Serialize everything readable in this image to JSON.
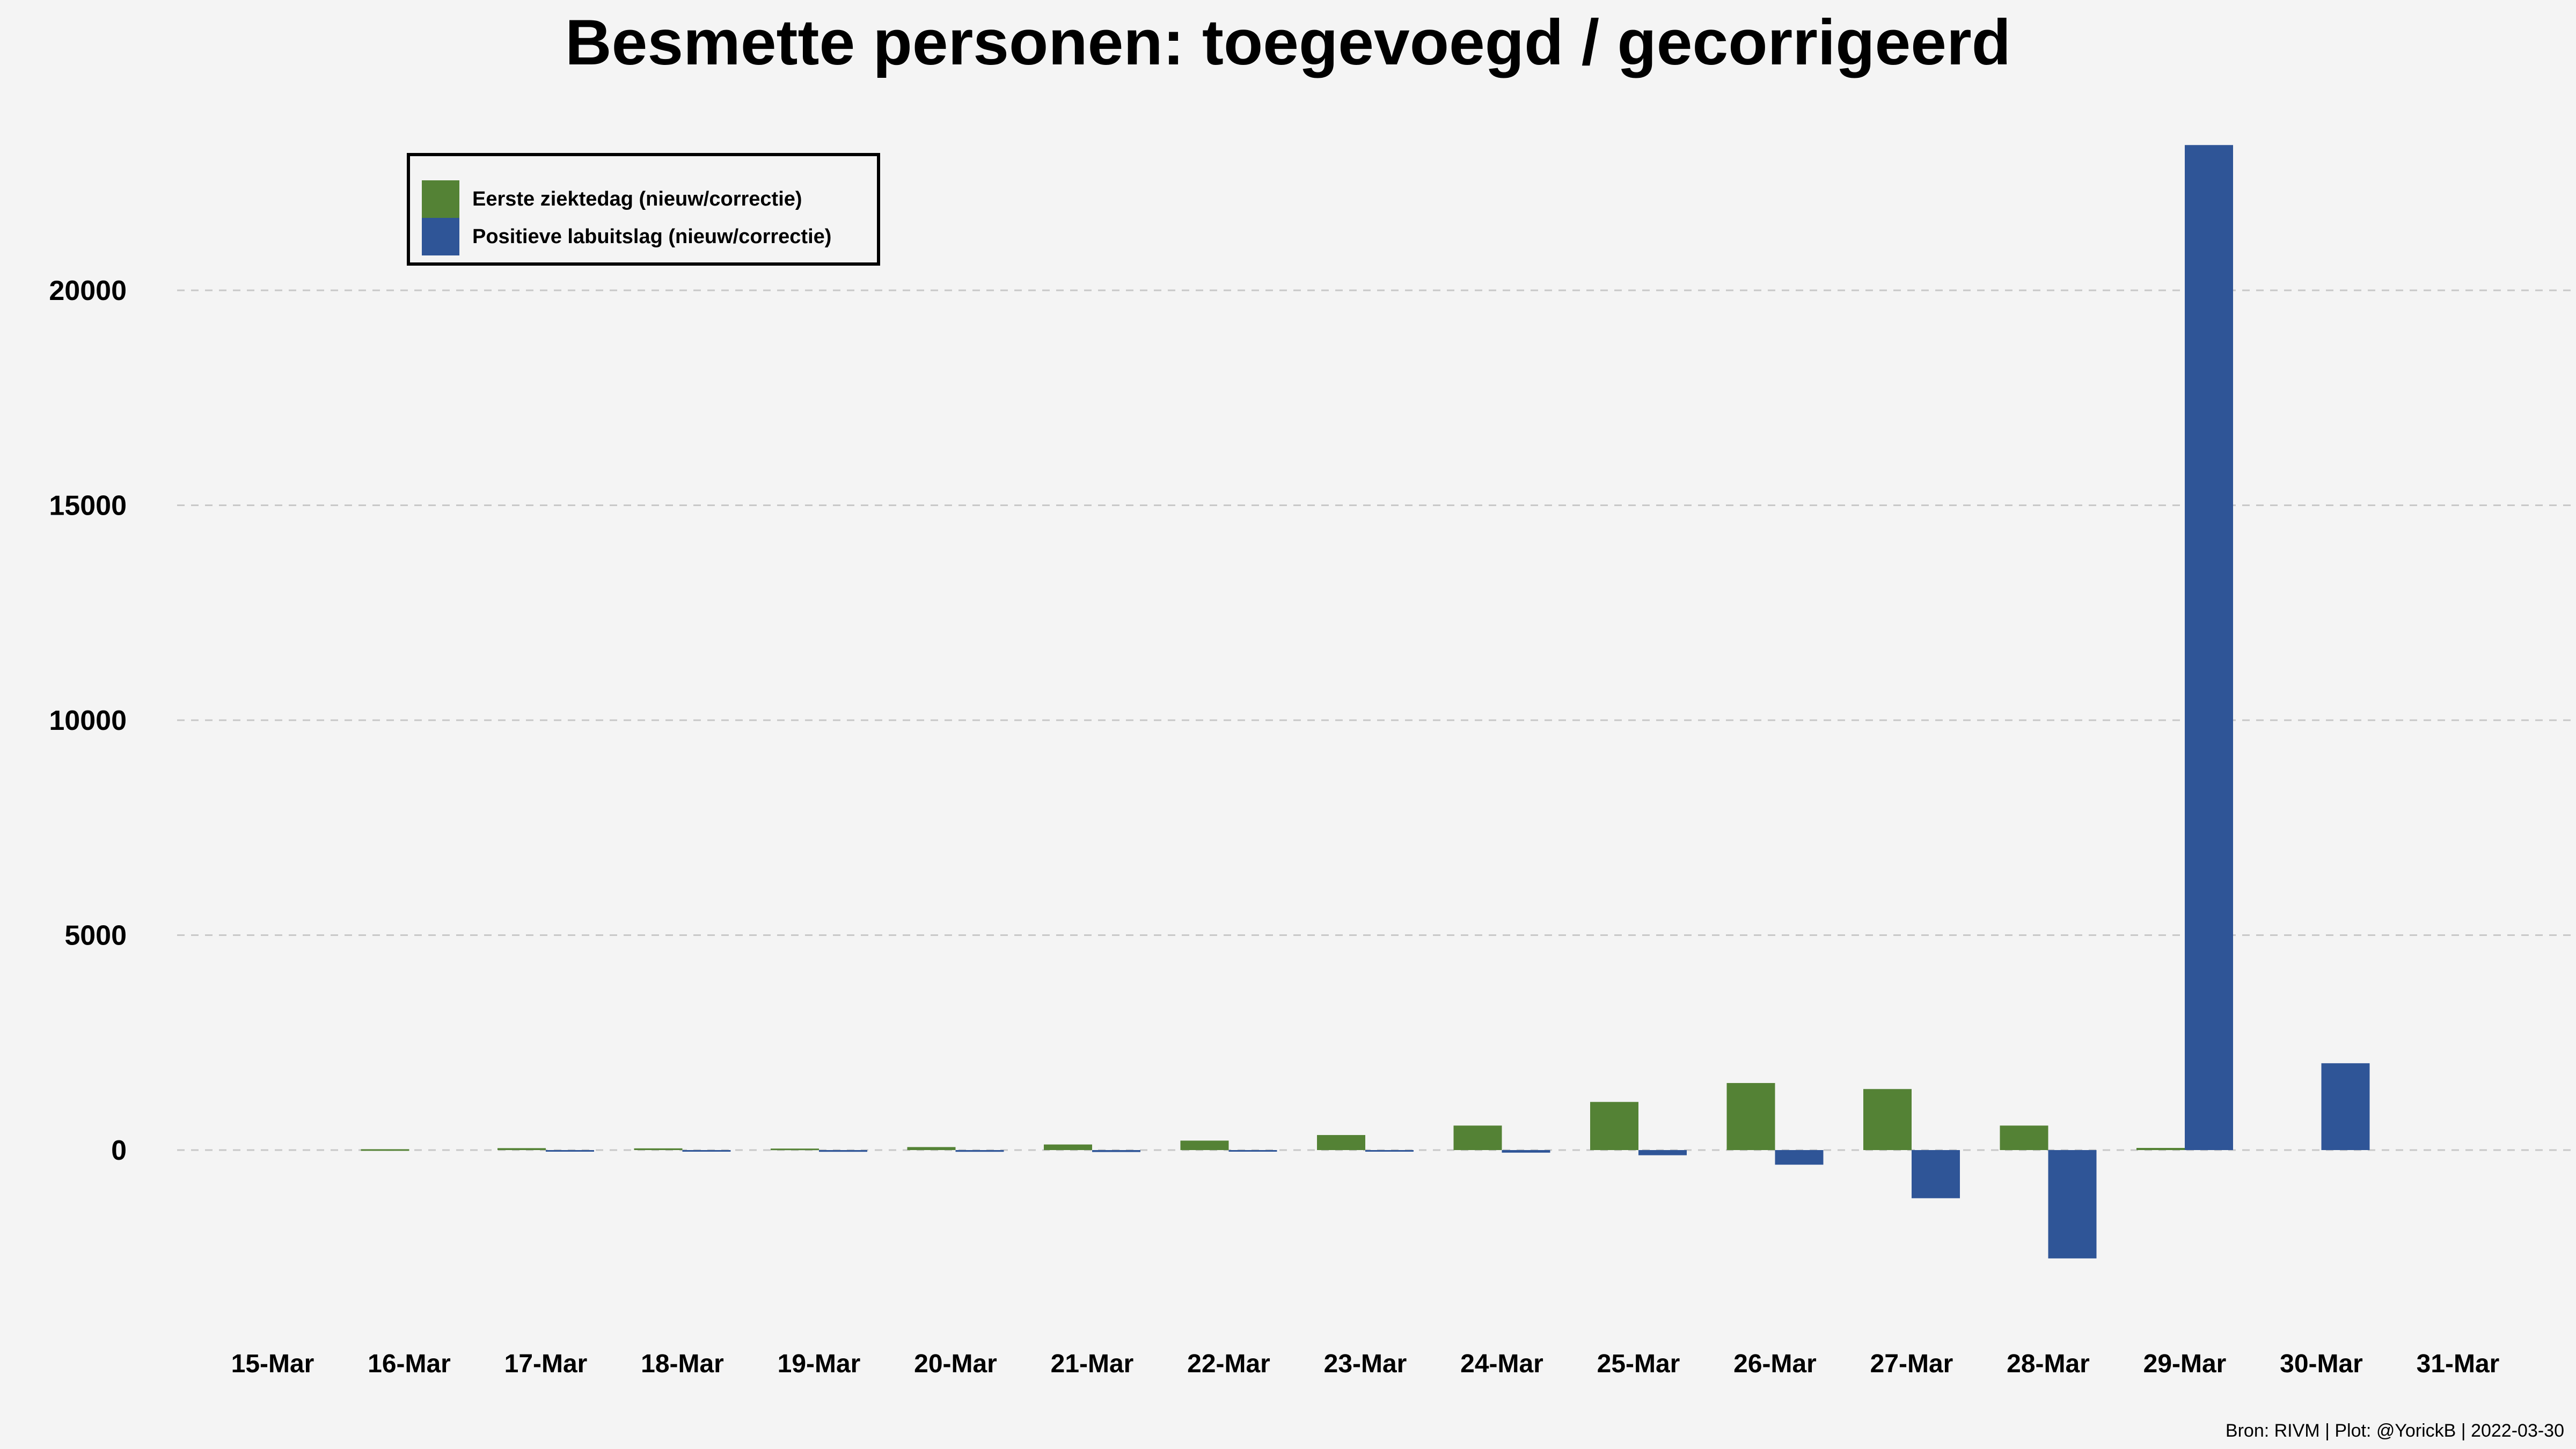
{
  "chart_data": {
    "type": "bar",
    "title": "Besmette personen: toegevoegd / gecorrigeerd",
    "caption": "Bron: RIVM | Plot: @YorickB |  2022-03-30",
    "categories": [
      "15-Mar",
      "16-Mar",
      "17-Mar",
      "18-Mar",
      "19-Mar",
      "20-Mar",
      "21-Mar",
      "22-Mar",
      "23-Mar",
      "24-Mar",
      "25-Mar",
      "26-Mar",
      "27-Mar",
      "28-Mar",
      "29-Mar",
      "30-Mar",
      "31-Mar"
    ],
    "series": [
      {
        "name": "Eerste ziektedag (nieuw/correctie)",
        "color": "#548235",
        "values": [
          0,
          20,
          45,
          40,
          35,
          70,
          130,
          220,
          350,
          570,
          1120,
          1560,
          1420,
          570,
          50,
          0,
          0
        ]
      },
      {
        "name": "Positieve labuitslag (nieuw/correctie)",
        "color": "#2f5597",
        "values": [
          0,
          0,
          -15,
          -20,
          -40,
          -40,
          -45,
          -10,
          -25,
          -60,
          -120,
          -340,
          -1120,
          -2520,
          23380,
          2020,
          0
        ]
      }
    ],
    "yticks": [
      0,
      5000,
      10000,
      15000,
      20000
    ],
    "ylim": [
      -3500,
      23700
    ],
    "grid": true,
    "legend_position": "top-left"
  }
}
